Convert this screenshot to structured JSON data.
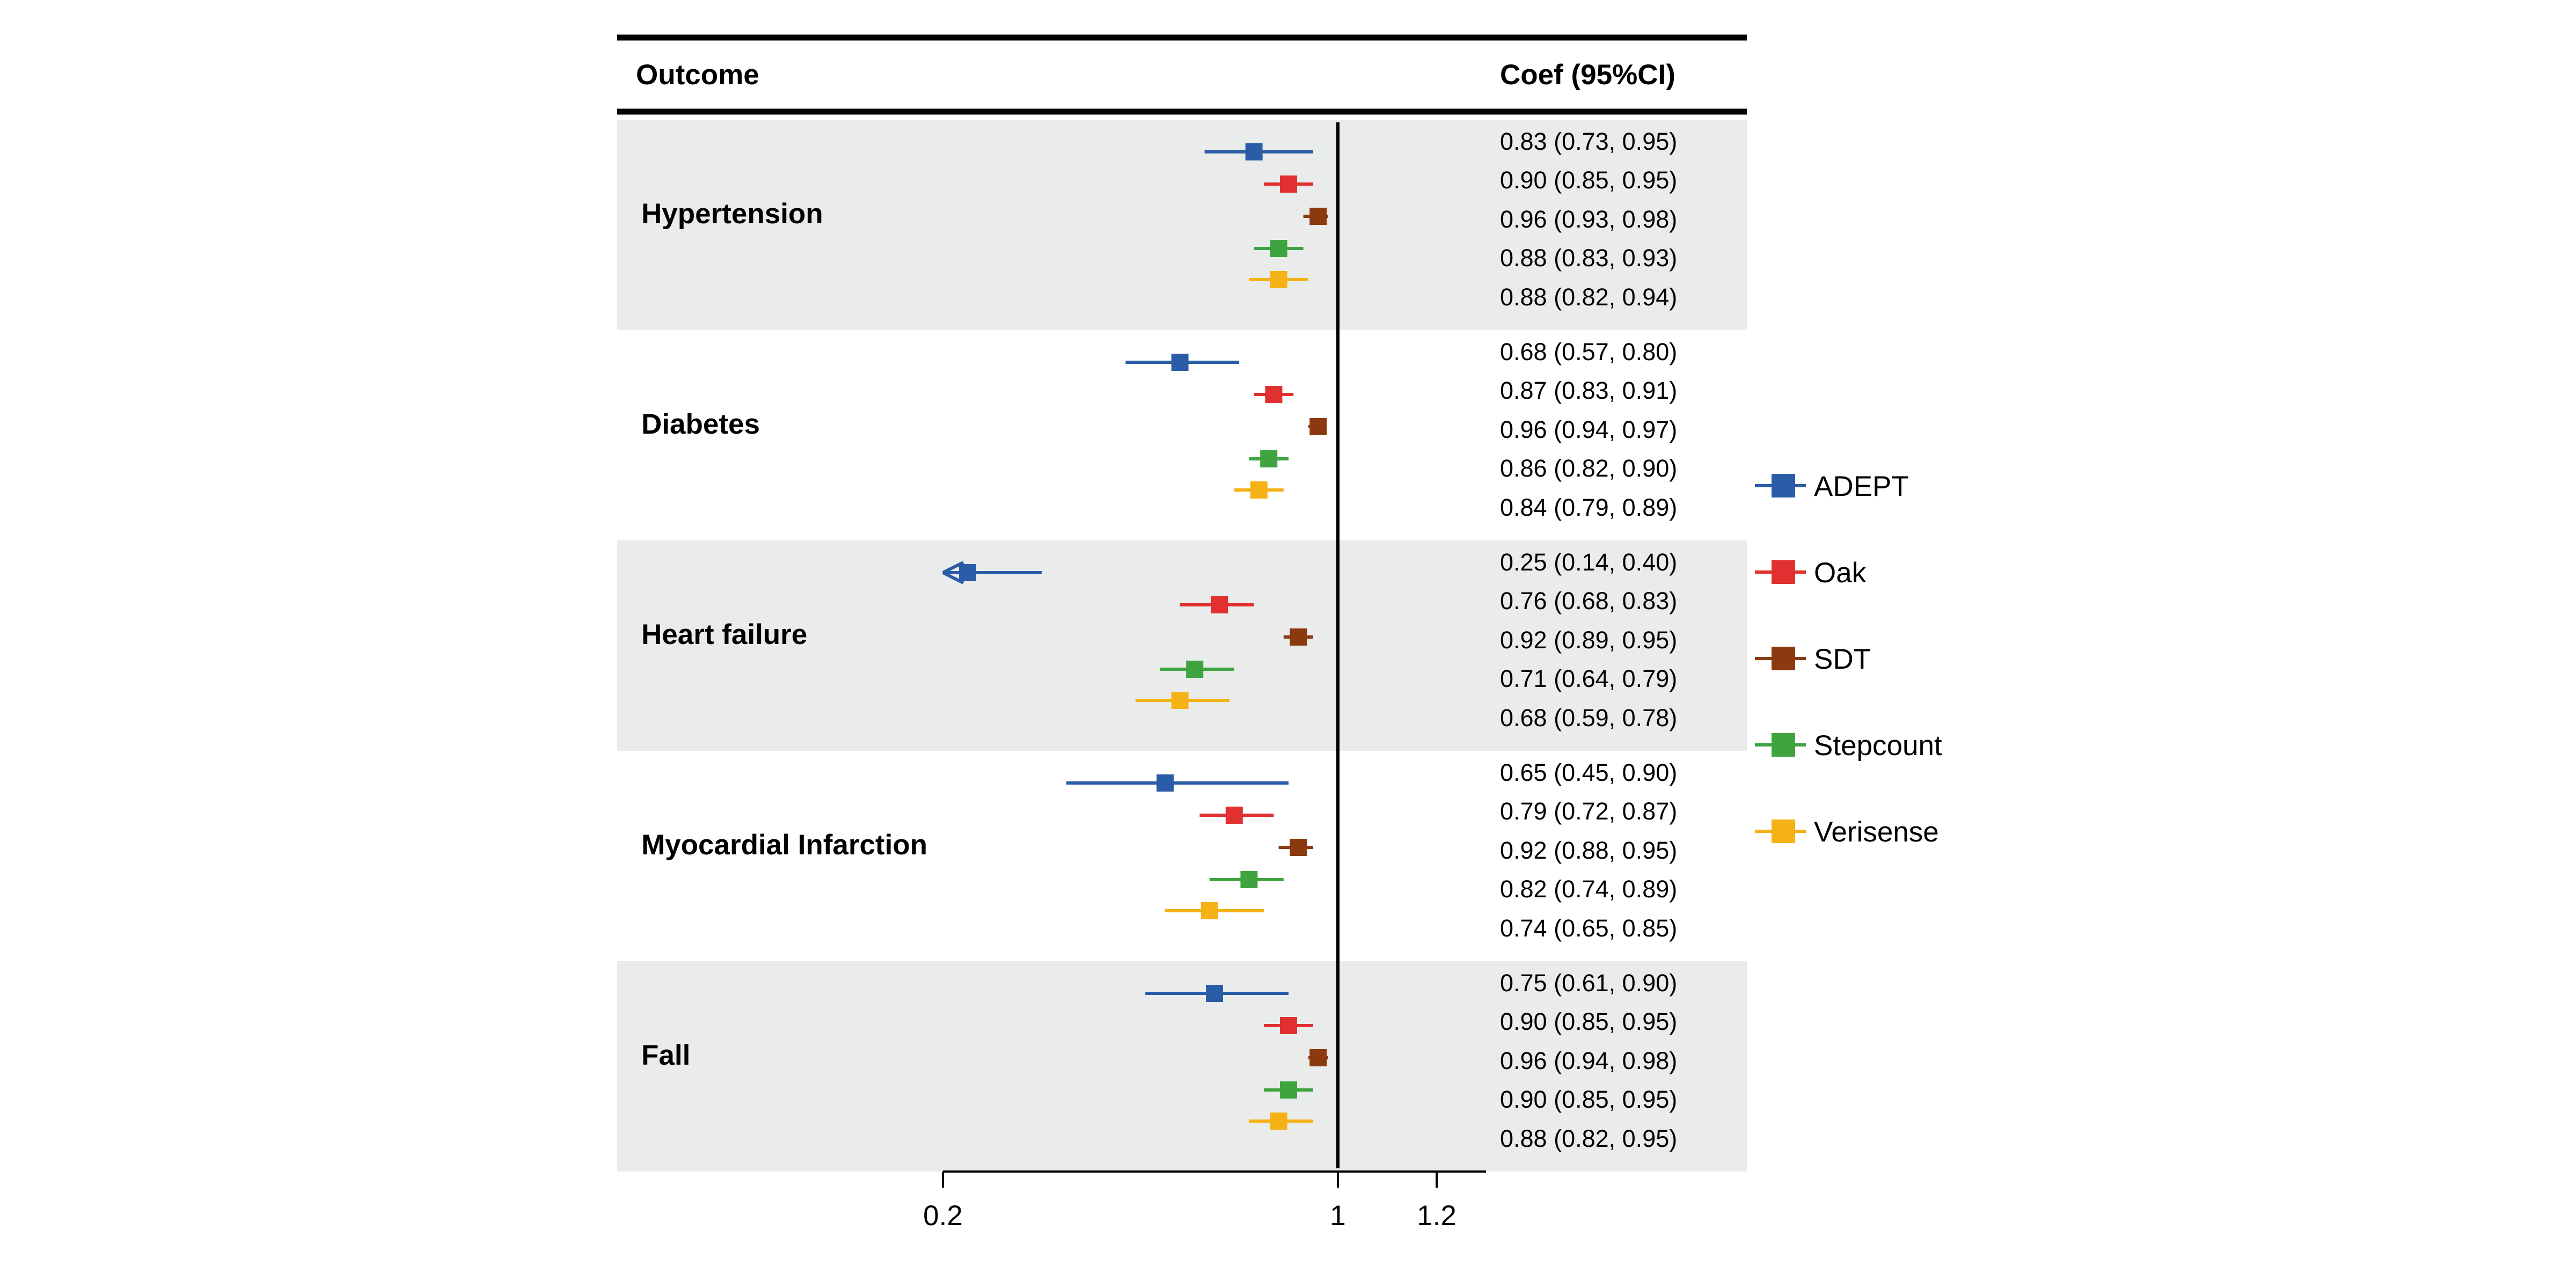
{
  "header": {
    "outcome_label": "Outcome",
    "coef_label": "Coef (95%CI)"
  },
  "colors": {
    "ADEPT": "#2b5ca8",
    "Oak": "#e03030",
    "SDT": "#8b3a10",
    "Stepcount": "#3fa33f",
    "Verisense": "#f5b216",
    "band": "#e9ecea"
  },
  "chart_data": {
    "type": "forest",
    "x_axis": {
      "min": 0.2,
      "max": 1.3,
      "ticks": [
        0.2,
        1,
        1.2
      ],
      "tick_labels": [
        "0.2",
        "1",
        "1.2"
      ],
      "reference_line": 1
    },
    "series": [
      "ADEPT",
      "Oak",
      "SDT",
      "Stepcount",
      "Verisense"
    ],
    "legend_position": "right",
    "groups": [
      {
        "outcome": "Hypertension",
        "shaded": true,
        "rows": [
          {
            "series": "ADEPT",
            "est": 0.83,
            "lo": 0.73,
            "hi": 0.95,
            "label": "0.83 (0.73, 0.95)"
          },
          {
            "series": "Oak",
            "est": 0.9,
            "lo": 0.85,
            "hi": 0.95,
            "label": "0.90 (0.85, 0.95)"
          },
          {
            "series": "SDT",
            "est": 0.96,
            "lo": 0.93,
            "hi": 0.98,
            "label": "0.96 (0.93, 0.98)"
          },
          {
            "series": "Stepcount",
            "est": 0.88,
            "lo": 0.83,
            "hi": 0.93,
            "label": "0.88 (0.83, 0.93)"
          },
          {
            "series": "Verisense",
            "est": 0.88,
            "lo": 0.82,
            "hi": 0.94,
            "label": "0.88 (0.82, 0.94)"
          }
        ]
      },
      {
        "outcome": "Diabetes",
        "shaded": false,
        "rows": [
          {
            "series": "ADEPT",
            "est": 0.68,
            "lo": 0.57,
            "hi": 0.8,
            "label": "0.68 (0.57, 0.80)"
          },
          {
            "series": "Oak",
            "est": 0.87,
            "lo": 0.83,
            "hi": 0.91,
            "label": "0.87 (0.83, 0.91)"
          },
          {
            "series": "SDT",
            "est": 0.96,
            "lo": 0.94,
            "hi": 0.97,
            "label": "0.96 (0.94, 0.97)"
          },
          {
            "series": "Stepcount",
            "est": 0.86,
            "lo": 0.82,
            "hi": 0.9,
            "label": "0.86 (0.82, 0.90)"
          },
          {
            "series": "Verisense",
            "est": 0.84,
            "lo": 0.79,
            "hi": 0.89,
            "label": "0.84 (0.79, 0.89)"
          }
        ]
      },
      {
        "outcome": "Heart failure",
        "shaded": true,
        "rows": [
          {
            "series": "ADEPT",
            "est": 0.25,
            "lo": 0.14,
            "hi": 0.4,
            "label": "0.25 (0.14, 0.40)"
          },
          {
            "series": "Oak",
            "est": 0.76,
            "lo": 0.68,
            "hi": 0.83,
            "label": "0.76 (0.68, 0.83)"
          },
          {
            "series": "SDT",
            "est": 0.92,
            "lo": 0.89,
            "hi": 0.95,
            "label": "0.92 (0.89, 0.95)"
          },
          {
            "series": "Stepcount",
            "est": 0.71,
            "lo": 0.64,
            "hi": 0.79,
            "label": "0.71 (0.64, 0.79)"
          },
          {
            "series": "Verisense",
            "est": 0.68,
            "lo": 0.59,
            "hi": 0.78,
            "label": "0.68 (0.59, 0.78)"
          }
        ]
      },
      {
        "outcome": "Myocardial Infarction",
        "shaded": false,
        "rows": [
          {
            "series": "ADEPT",
            "est": 0.65,
            "lo": 0.45,
            "hi": 0.9,
            "label": "0.65 (0.45, 0.90)"
          },
          {
            "series": "Oak",
            "est": 0.79,
            "lo": 0.72,
            "hi": 0.87,
            "label": "0.79 (0.72, 0.87)"
          },
          {
            "series": "SDT",
            "est": 0.92,
            "lo": 0.88,
            "hi": 0.95,
            "label": "0.92 (0.88, 0.95)"
          },
          {
            "series": "Stepcount",
            "est": 0.82,
            "lo": 0.74,
            "hi": 0.89,
            "label": "0.82 (0.74, 0.89)"
          },
          {
            "series": "Verisense",
            "est": 0.74,
            "lo": 0.65,
            "hi": 0.85,
            "label": "0.74 (0.65, 0.85)"
          }
        ]
      },
      {
        "outcome": "Fall",
        "shaded": true,
        "rows": [
          {
            "series": "ADEPT",
            "est": 0.75,
            "lo": 0.61,
            "hi": 0.9,
            "label": "0.75 (0.61, 0.90)"
          },
          {
            "series": "Oak",
            "est": 0.9,
            "lo": 0.85,
            "hi": 0.95,
            "label": "0.90 (0.85, 0.95)"
          },
          {
            "series": "SDT",
            "est": 0.96,
            "lo": 0.94,
            "hi": 0.98,
            "label": "0.96 (0.94, 0.98)"
          },
          {
            "series": "Stepcount",
            "est": 0.9,
            "lo": 0.85,
            "hi": 0.95,
            "label": "0.90 (0.85, 0.95)"
          },
          {
            "series": "Verisense",
            "est": 0.88,
            "lo": 0.82,
            "hi": 0.95,
            "label": "0.88 (0.82, 0.95)"
          }
        ]
      }
    ]
  }
}
